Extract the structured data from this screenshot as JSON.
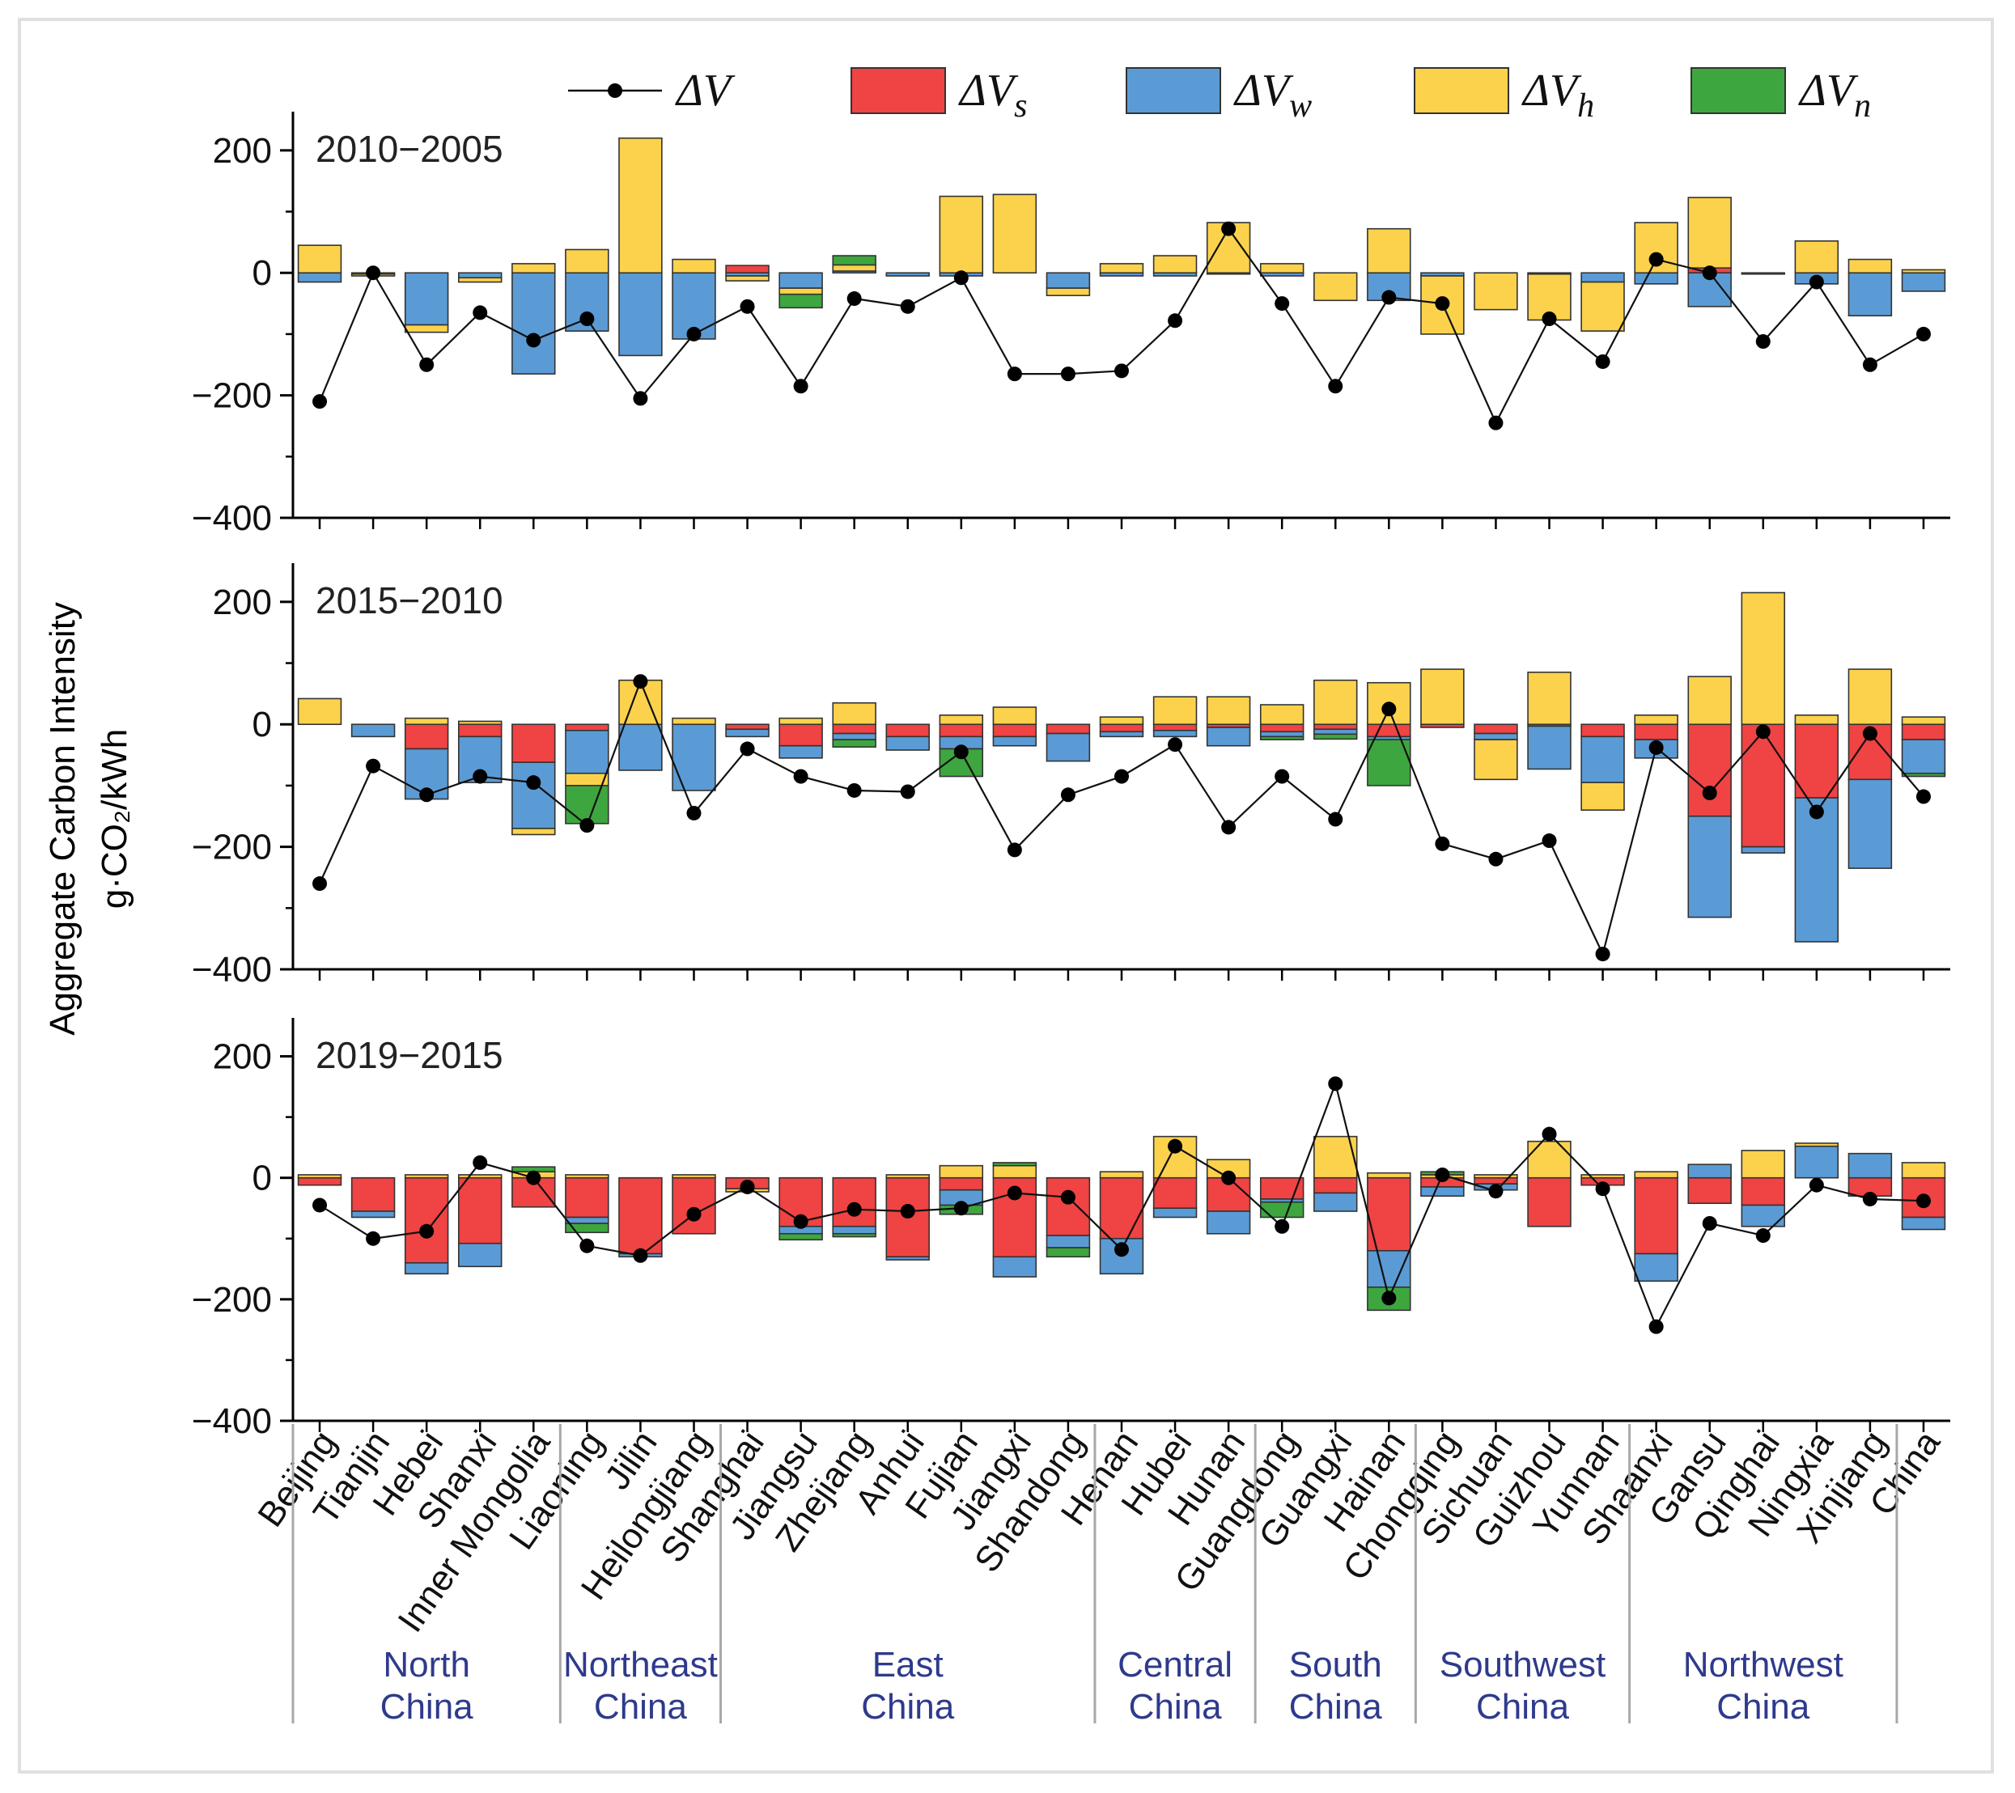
{
  "chart_data": {
    "type": "bar",
    "stacked": true,
    "ylabel": "Aggregate Carbon Intensity",
    "yunit": "g·CO₂/kWh",
    "ylim": [
      -400,
      250
    ],
    "yticks": [
      "200",
      "0",
      "−200",
      "−400"
    ],
    "legend": [
      {
        "key": "dV",
        "sym": "ΔV",
        "sub": "",
        "kind": "line",
        "color": "#000000"
      },
      {
        "key": "dVs",
        "sym": "ΔV",
        "sub": "s",
        "kind": "box",
        "color": "#f04343"
      },
      {
        "key": "dVw",
        "sym": "ΔV",
        "sub": "w",
        "kind": "box",
        "color": "#5b9bd5"
      },
      {
        "key": "dVh",
        "sym": "ΔV",
        "sub": "h",
        "kind": "box",
        "color": "#fcd24c"
      },
      {
        "key": "dVn",
        "sym": "ΔV",
        "sub": "n",
        "kind": "box",
        "color": "#3ea63e"
      }
    ],
    "categories": [
      "Beijing",
      "Tianjin",
      "Hebei",
      "Shanxi",
      "Inner Mongolia",
      "Liaoning",
      "Jilin",
      "Heilongjiang",
      "Shanghai",
      "Jiangsu",
      "Zhejiang",
      "Anhui",
      "Fujian",
      "Jiangxi",
      "Shandong",
      "Henan",
      "Hubei",
      "Hunan",
      "Guangdong",
      "Guangxi",
      "Hainan",
      "Chongqing",
      "Sichuan",
      "Guizhou",
      "Yunnan",
      "Shaanxi",
      "Gansu",
      "Qinghai",
      "Ningxia",
      "Xinjiang",
      "China"
    ],
    "regions": [
      {
        "line1": "North",
        "line2": "China",
        "start": 0,
        "end": 4
      },
      {
        "line1": "Northeast",
        "line2": "China",
        "start": 5,
        "end": 7
      },
      {
        "line1": "East",
        "line2": "China",
        "start": 8,
        "end": 14
      },
      {
        "line1": "Central",
        "line2": "China",
        "start": 15,
        "end": 17
      },
      {
        "line1": "South",
        "line2": "China",
        "start": 18,
        "end": 20
      },
      {
        "line1": "Southwest",
        "line2": "China",
        "start": 21,
        "end": 24
      },
      {
        "line1": "Northwest",
        "line2": "China",
        "start": 25,
        "end": 29
      }
    ],
    "panels": [
      {
        "title": "2010−2005",
        "dVs": [
          0,
          0,
          0,
          0,
          0,
          0,
          0,
          0,
          12,
          0,
          0,
          0,
          0,
          0,
          0,
          0,
          0,
          0,
          0,
          0,
          0,
          0,
          0,
          0,
          0,
          0,
          8,
          0,
          0,
          0,
          0
        ],
        "dVw": [
          -15,
          -2,
          -85,
          -8,
          -165,
          -95,
          -135,
          -108,
          -5,
          -25,
          3,
          -5,
          -5,
          0,
          -25,
          -5,
          -5,
          -2,
          -5,
          0,
          -45,
          -5,
          0,
          -2,
          -15,
          -18,
          -55,
          -2,
          -18,
          -70,
          -30
        ],
        "dVh": [
          45,
          -3,
          -12,
          -7,
          15,
          38,
          220,
          22,
          -8,
          -10,
          10,
          0,
          125,
          128,
          -12,
          15,
          28,
          82,
          15,
          -45,
          72,
          -95,
          -60,
          -75,
          -80,
          82,
          115,
          0,
          52,
          22,
          5
        ],
        "dVn": [
          0,
          0,
          0,
          0,
          0,
          0,
          0,
          0,
          0,
          -22,
          15,
          0,
          0,
          0,
          0,
          0,
          0,
          0,
          0,
          0,
          0,
          0,
          0,
          0,
          0,
          0,
          0,
          0,
          0,
          0,
          0
        ],
        "dV": [
          -210,
          0,
          -150,
          -65,
          -110,
          -75,
          -205,
          -100,
          -55,
          -185,
          -42,
          -55,
          -8,
          -165,
          -165,
          -160,
          -78,
          72,
          -50,
          -185,
          -40,
          -50,
          -245,
          -75,
          -145,
          22,
          0,
          -112,
          -15,
          -150,
          -100
        ]
      },
      {
        "title": "2015−2010",
        "dVs": [
          0,
          0,
          -40,
          -20,
          -62,
          -10,
          0,
          0,
          -8,
          -35,
          -15,
          -20,
          -20,
          -20,
          -15,
          -12,
          -10,
          -5,
          -12,
          -8,
          -20,
          -5,
          -15,
          -3,
          -20,
          -25,
          -150,
          -200,
          -120,
          -90,
          -25
        ],
        "dVw": [
          0,
          -20,
          -82,
          -75,
          -108,
          -70,
          -75,
          -108,
          -12,
          -20,
          -10,
          -22,
          -20,
          -15,
          -45,
          -8,
          -10,
          -30,
          -8,
          -8,
          -5,
          0,
          -10,
          -70,
          -75,
          -30,
          -165,
          -10,
          -235,
          -145,
          -55
        ],
        "dVh": [
          42,
          0,
          10,
          5,
          -10,
          -20,
          72,
          10,
          0,
          10,
          35,
          0,
          15,
          28,
          0,
          12,
          45,
          45,
          32,
          72,
          68,
          90,
          -65,
          85,
          -45,
          15,
          78,
          215,
          15,
          90,
          12
        ],
        "dVn": [
          0,
          0,
          0,
          0,
          0,
          -62,
          0,
          0,
          0,
          0,
          -12,
          0,
          -45,
          0,
          0,
          0,
          0,
          0,
          -5,
          -8,
          -75,
          0,
          0,
          0,
          0,
          0,
          0,
          0,
          0,
          0,
          -5
        ],
        "dV": [
          -260,
          -68,
          -115,
          -85,
          -95,
          -165,
          70,
          -145,
          -40,
          -85,
          -108,
          -110,
          -45,
          -205,
          -115,
          -85,
          -33,
          -168,
          -85,
          -155,
          25,
          -195,
          -220,
          -190,
          -375,
          -38,
          -112,
          -12,
          -143,
          -15,
          -118
        ]
      },
      {
        "title": "2019−2015",
        "dVs": [
          -12,
          -55,
          -140,
          -108,
          -48,
          -65,
          -125,
          -92,
          -18,
          -80,
          -80,
          -130,
          -20,
          -130,
          -95,
          -100,
          -50,
          -55,
          -35,
          -25,
          -120,
          -15,
          -10,
          -80,
          -12,
          -125,
          -42,
          -45,
          0,
          -30,
          -65
        ],
        "dVw": [
          0,
          -10,
          -18,
          -38,
          0,
          -10,
          -5,
          0,
          0,
          -12,
          -12,
          -5,
          -25,
          -33,
          -20,
          -58,
          -15,
          -37,
          -5,
          -30,
          -60,
          -15,
          -10,
          0,
          0,
          -45,
          22,
          -35,
          52,
          40,
          -20
        ],
        "dVh": [
          5,
          0,
          5,
          5,
          10,
          5,
          0,
          5,
          -5,
          0,
          0,
          5,
          20,
          20,
          0,
          10,
          68,
          30,
          0,
          68,
          8,
          5,
          5,
          60,
          5,
          10,
          0,
          45,
          5,
          0,
          25
        ],
        "dVn": [
          0,
          0,
          0,
          0,
          8,
          -15,
          0,
          0,
          0,
          -10,
          -5,
          0,
          -15,
          5,
          -15,
          0,
          0,
          0,
          -25,
          0,
          -38,
          5,
          0,
          0,
          0,
          0,
          0,
          0,
          0,
          0,
          0
        ],
        "dV": [
          -45,
          -100,
          -88,
          25,
          0,
          -112,
          -128,
          -60,
          -15,
          -72,
          -52,
          -55,
          -50,
          -25,
          -32,
          -118,
          52,
          0,
          -80,
          155,
          -198,
          5,
          -22,
          72,
          -18,
          -245,
          -75,
          -95,
          -12,
          -35,
          -38
        ]
      }
    ]
  }
}
